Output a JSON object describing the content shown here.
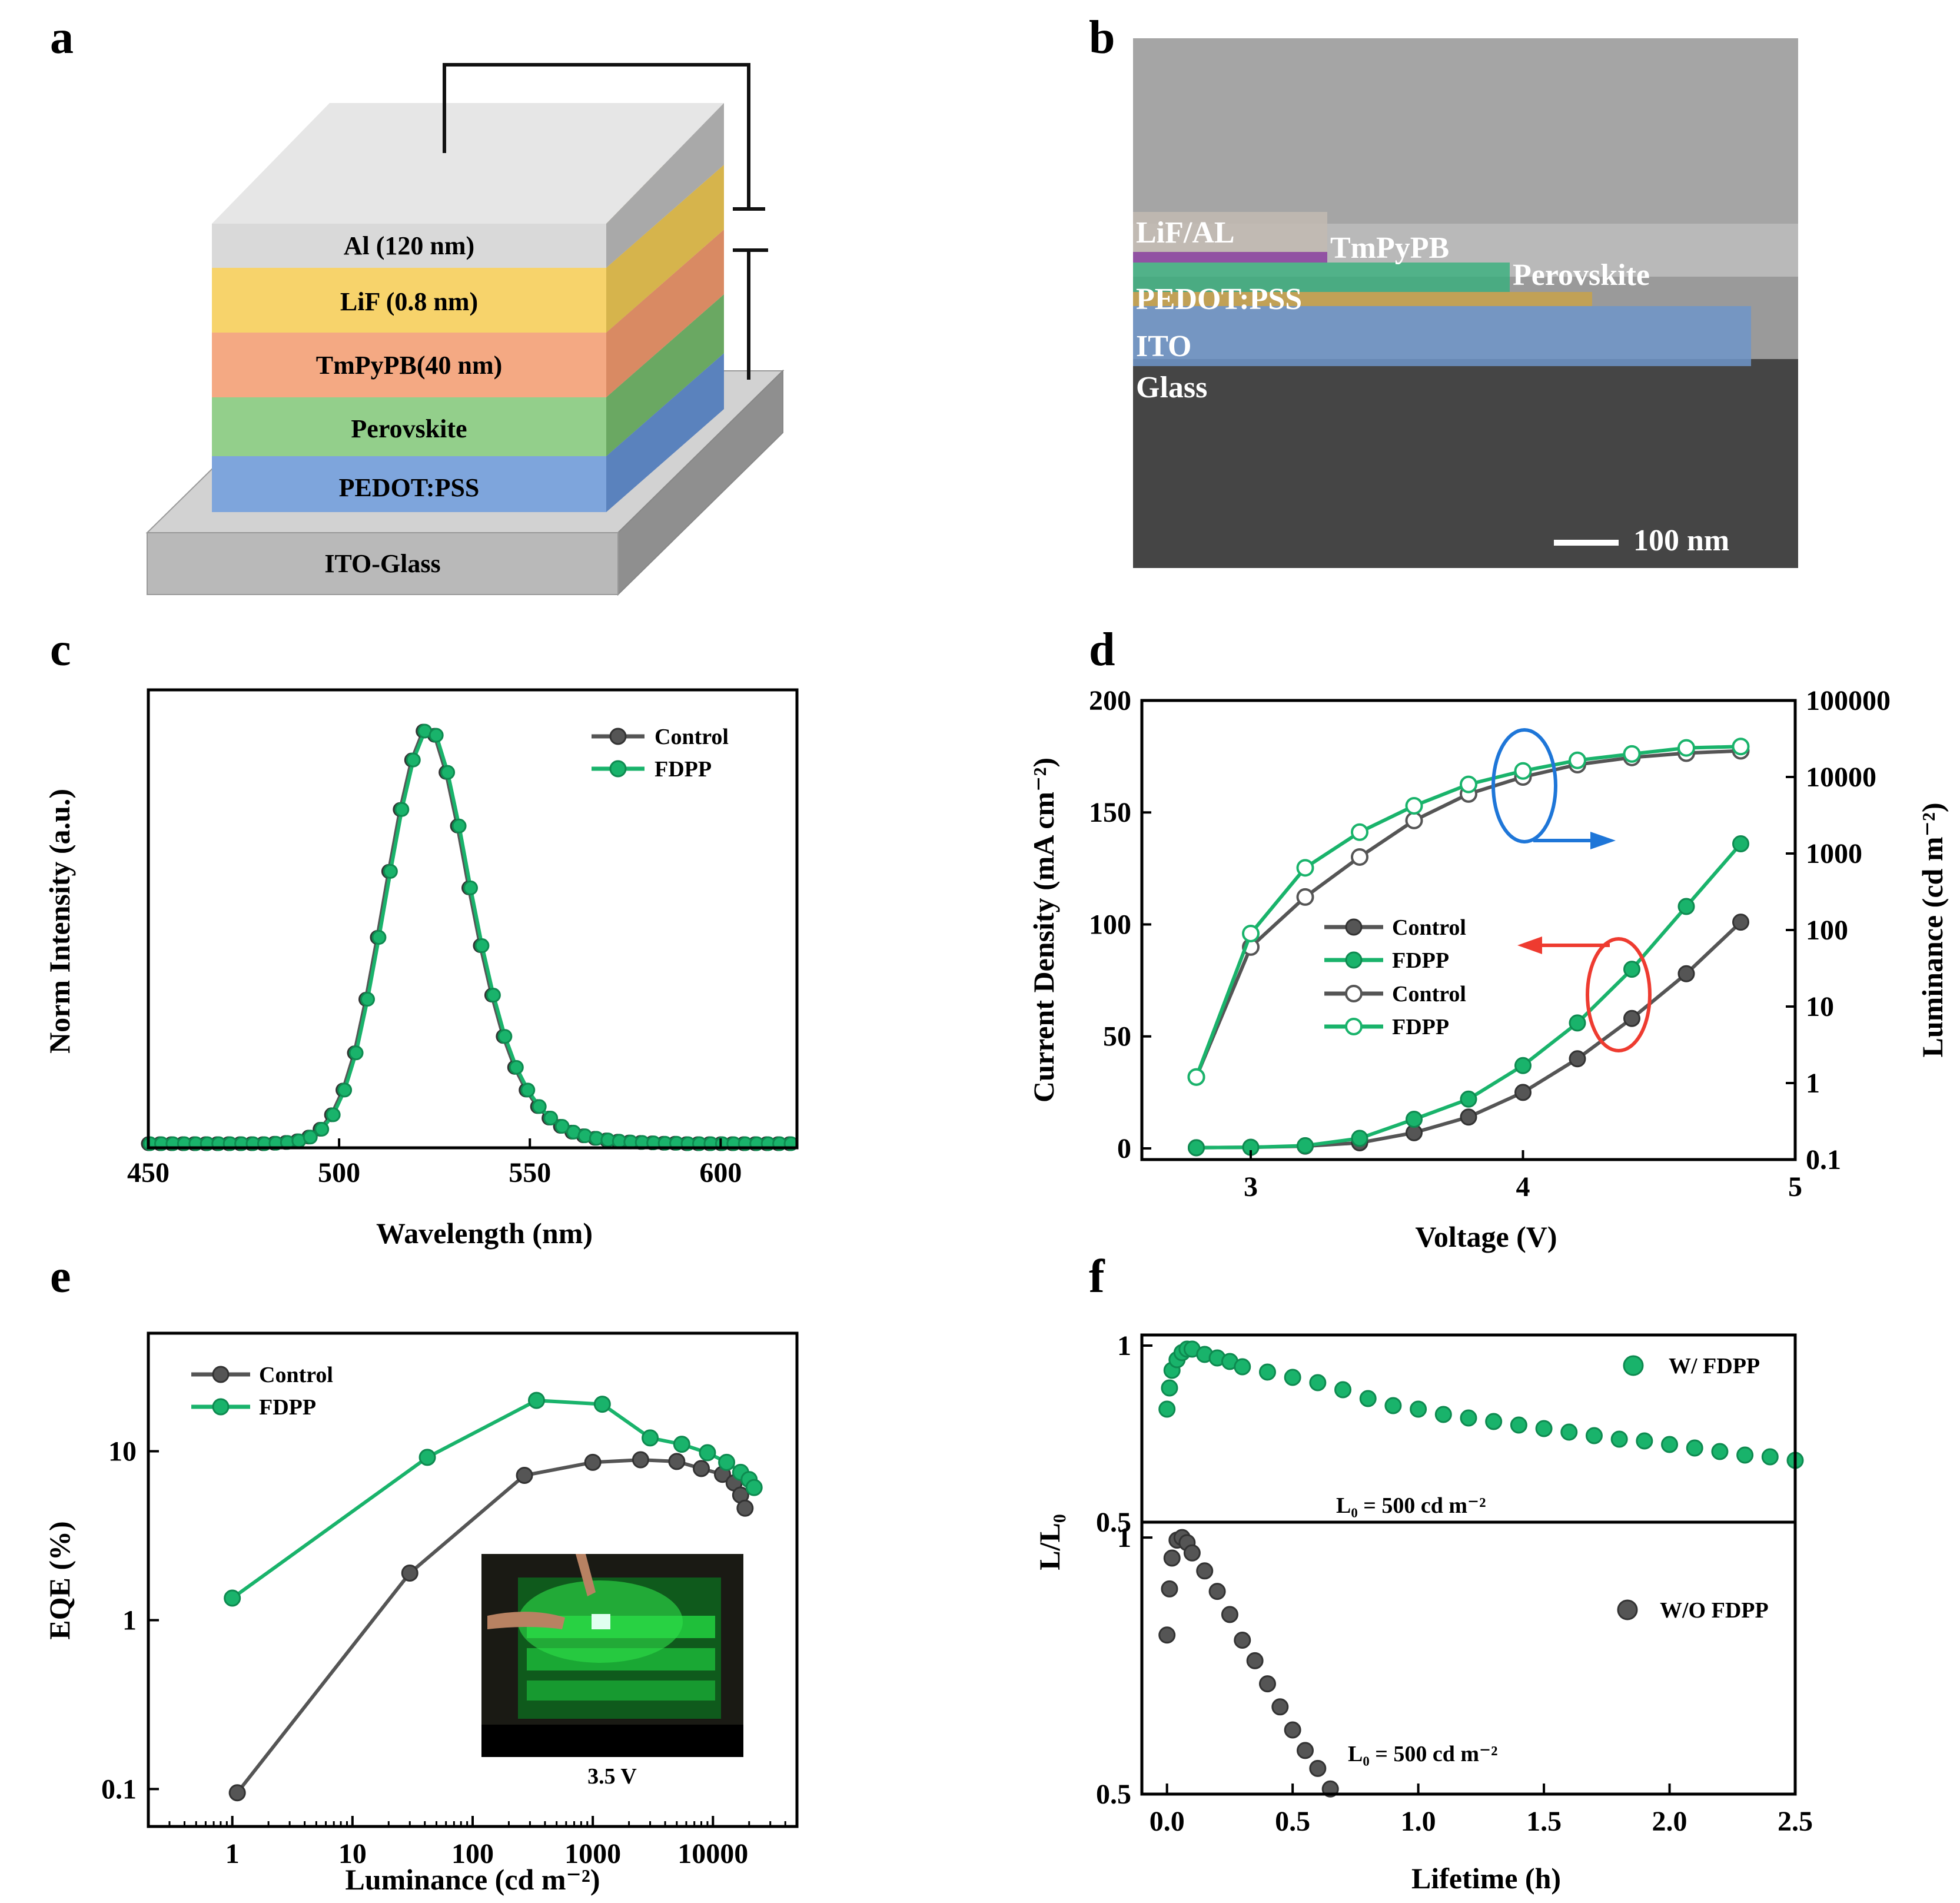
{
  "panels": {
    "a": {
      "label": "a",
      "layers": [
        "Al (120 nm)",
        "LiF (0.8 nm)",
        "TmPyPB(40 nm)",
        "Perovskite",
        "PEDOT:PSS",
        "ITO-Glass"
      ],
      "colors": {
        "al": "#d9d9d9",
        "lif": "#f7d36b",
        "tmpypb": "#f4a983",
        "perovskite": "#93cf8b",
        "pedot": "#7ea5dc",
        "ito": "#b9b9b9"
      }
    },
    "b": {
      "label": "b",
      "labels": {
        "lif_al": "LiF/AL",
        "tmpypb": "TmPyPB",
        "perovskite": "Perovskite",
        "pedot": "PEDOT:PSS",
        "ito": "ITO",
        "glass": "Glass"
      },
      "scale_bar": "100 nm"
    },
    "c": {
      "label": "c"
    },
    "d": {
      "label": "d"
    },
    "e": {
      "label": "e",
      "inset_caption": "3.5 V"
    },
    "f": {
      "label": "f",
      "top_note": "L₀ = 500 cd m⁻²",
      "bottom_note": "L₀ = 500 cd m⁻²"
    }
  },
  "colors": {
    "control": "#555555",
    "fdpp": "#19b36b",
    "blue": "#1e76d8",
    "red": "#ee3b30"
  },
  "chart_data": [
    {
      "panel": "c",
      "type": "line",
      "title": "",
      "xlabel": "Wavelength (nm)",
      "ylabel": "Norm Intensity (a.u.)",
      "xlim": [
        450,
        620
      ],
      "ylim": [
        -0.01,
        1.1
      ],
      "xticks": [
        "450",
        "500",
        "550",
        "600"
      ],
      "yticks_shown": false,
      "legend": [
        "Control",
        "FDPP"
      ],
      "legend_position": "top-right",
      "series": [
        {
          "name": "Control",
          "x": [
            450,
            453,
            456,
            459,
            462,
            465,
            468,
            471,
            474,
            477,
            480,
            483,
            486,
            489,
            492,
            495,
            498,
            501,
            504,
            507,
            510,
            513,
            516,
            519,
            522,
            525,
            528,
            531,
            534,
            537,
            540,
            543,
            546,
            549,
            552,
            555,
            558,
            561,
            564,
            567,
            570,
            573,
            576,
            579,
            582,
            585,
            588,
            591,
            594,
            597,
            600,
            603,
            606,
            609,
            612,
            615,
            618
          ],
          "y": [
            0,
            0,
            0,
            0,
            0,
            0,
            0,
            0,
            0,
            0,
            0,
            0.001,
            0.003,
            0.007,
            0.016,
            0.035,
            0.07,
            0.13,
            0.22,
            0.35,
            0.5,
            0.66,
            0.81,
            0.93,
            1.0,
            0.99,
            0.9,
            0.77,
            0.62,
            0.48,
            0.36,
            0.26,
            0.185,
            0.13,
            0.09,
            0.062,
            0.042,
            0.028,
            0.019,
            0.013,
            0.009,
            0.006,
            0.004,
            0.003,
            0.002,
            0.001,
            0.001,
            0,
            0,
            0,
            0,
            0,
            0,
            0,
            0,
            0,
            0
          ]
        },
        {
          "name": "FDPP",
          "x": [
            450,
            453,
            456,
            459,
            462,
            465,
            468,
            471,
            474,
            477,
            480,
            483,
            486,
            489,
            492,
            495,
            498,
            501,
            504,
            507,
            510,
            513,
            516,
            519,
            522,
            525,
            528,
            531,
            534,
            537,
            540,
            543,
            546,
            549,
            552,
            555,
            558,
            561,
            564,
            567,
            570,
            573,
            576,
            579,
            582,
            585,
            588,
            591,
            594,
            597,
            600,
            603,
            606,
            609,
            612,
            615,
            618
          ],
          "y": [
            0,
            0,
            0,
            0,
            0,
            0,
            0,
            0,
            0,
            0,
            0,
            0.001,
            0.003,
            0.007,
            0.016,
            0.035,
            0.07,
            0.13,
            0.22,
            0.35,
            0.5,
            0.66,
            0.81,
            0.93,
            1.0,
            0.99,
            0.9,
            0.77,
            0.62,
            0.48,
            0.36,
            0.26,
            0.185,
            0.13,
            0.09,
            0.062,
            0.042,
            0.028,
            0.019,
            0.013,
            0.009,
            0.006,
            0.004,
            0.003,
            0.002,
            0.001,
            0.001,
            0,
            0,
            0,
            0,
            0,
            0,
            0,
            0,
            0,
            0
          ]
        }
      ]
    },
    {
      "panel": "d",
      "type": "line",
      "title": "",
      "xlabel": "Voltage (V)",
      "ylabel": "Current Density (mA cm⁻²)",
      "ylabel_right": "Luminance (cd m⁻²)",
      "xlim": [
        2.6,
        5.0
      ],
      "ylim": [
        -5,
        200
      ],
      "ylim_right_log": [
        0.1,
        100000
      ],
      "xticks": [
        "3",
        "4",
        "5"
      ],
      "yticks": [
        "0",
        "50",
        "100",
        "150",
        "200"
      ],
      "yticks_right": [
        "0.1",
        "1",
        "10",
        "100",
        "1000",
        "10000",
        "100000"
      ],
      "legend": [
        "Control",
        "FDPP",
        "Control",
        "FDPP"
      ],
      "legend_position": "center",
      "series": [
        {
          "name": "Control",
          "axis": "left",
          "marker": "filled",
          "x": [
            2.8,
            3.0,
            3.2,
            3.4,
            3.6,
            3.8,
            4.0,
            4.2,
            4.4,
            4.6,
            4.8
          ],
          "y": [
            0.3,
            0.5,
            1.0,
            2.5,
            7,
            14,
            25,
            40,
            58,
            78,
            101
          ]
        },
        {
          "name": "FDPP",
          "axis": "left",
          "marker": "filled",
          "x": [
            2.8,
            3.0,
            3.2,
            3.4,
            3.6,
            3.8,
            4.0,
            4.2,
            4.4,
            4.6,
            4.8
          ],
          "y": [
            0.3,
            0.5,
            1.2,
            4.5,
            13,
            22,
            37,
            56,
            80,
            108,
            136
          ]
        },
        {
          "name": "Control",
          "axis": "right",
          "marker": "open",
          "x": [
            2.8,
            3.0,
            3.2,
            3.4,
            3.6,
            3.8,
            4.0,
            4.2,
            4.4,
            4.6,
            4.8
          ],
          "y": [
            1.2,
            60,
            270,
            900,
            2700,
            6000,
            10000,
            14500,
            18000,
            20500,
            22000
          ]
        },
        {
          "name": "FDPP",
          "axis": "right",
          "marker": "open",
          "x": [
            2.8,
            3.0,
            3.2,
            3.4,
            3.6,
            3.8,
            4.0,
            4.2,
            4.4,
            4.6,
            4.8
          ],
          "y": [
            1.2,
            90,
            650,
            1900,
            4200,
            8000,
            12000,
            16500,
            20000,
            24000,
            25000
          ]
        }
      ]
    },
    {
      "panel": "e",
      "type": "line",
      "title": "",
      "xlabel": "Luminance (cd m⁻²)",
      "ylabel": "EQE (%)",
      "xscale": "log",
      "yscale": "log",
      "xlim": [
        0.2,
        50000
      ],
      "ylim": [
        0.06,
        50
      ],
      "xticks": [
        "1",
        "10",
        "100",
        "1000",
        "10000"
      ],
      "yticks": [
        "0.1",
        "1",
        "10"
      ],
      "legend": [
        "Control",
        "FDPP"
      ],
      "legend_position": "top-left",
      "series": [
        {
          "name": "Control",
          "x": [
            1.1,
            30,
            270,
            1000,
            2500,
            5000,
            8000,
            12000,
            15000,
            17000,
            18500
          ],
          "y": [
            0.095,
            1.9,
            7.2,
            8.6,
            8.9,
            8.7,
            7.9,
            7.3,
            6.5,
            5.5,
            4.6
          ]
        },
        {
          "name": "FDPP",
          "x": [
            1.0,
            42,
            340,
            1200,
            3000,
            5500,
            9000,
            13000,
            17000,
            20000,
            22000
          ],
          "y": [
            1.35,
            9.2,
            20,
            19,
            12,
            11,
            9.8,
            8.6,
            7.5,
            6.8,
            6.1
          ]
        }
      ]
    },
    {
      "panel": "f",
      "type": "scatter",
      "title": "",
      "xlabel": "Lifetime (h)",
      "ylabel": "L/L₀",
      "xlim": [
        -0.1,
        2.5
      ],
      "ylim_top": [
        0.5,
        1.03
      ],
      "ylim_bottom": [
        0.5,
        1.03
      ],
      "xticks": [
        "0.0",
        "0.5",
        "1.0",
        "1.5",
        "2.0",
        "2.5"
      ],
      "yticks": [
        "0.5",
        "1"
      ],
      "legend": [
        "W/ FDPP",
        "W/O FDPP"
      ],
      "legend_position": "top-right",
      "series": [
        {
          "name": "W/ FDPP",
          "subplot": "top",
          "x": [
            0.0,
            0.01,
            0.02,
            0.04,
            0.06,
            0.08,
            0.1,
            0.15,
            0.2,
            0.25,
            0.3,
            0.4,
            0.5,
            0.6,
            0.7,
            0.8,
            0.9,
            1.0,
            1.1,
            1.2,
            1.3,
            1.4,
            1.5,
            1.6,
            1.7,
            1.8,
            1.9,
            2.0,
            2.1,
            2.2,
            2.3,
            2.4,
            2.5
          ],
          "y": [
            0.82,
            0.88,
            0.93,
            0.96,
            0.98,
            0.99,
            0.99,
            0.975,
            0.965,
            0.955,
            0.94,
            0.925,
            0.91,
            0.895,
            0.875,
            0.85,
            0.83,
            0.82,
            0.805,
            0.795,
            0.785,
            0.775,
            0.765,
            0.755,
            0.745,
            0.735,
            0.73,
            0.72,
            0.71,
            0.7,
            0.69,
            0.685,
            0.675
          ]
        },
        {
          "name": "W/O FDPP",
          "subplot": "bottom",
          "x": [
            0.0,
            0.01,
            0.02,
            0.04,
            0.06,
            0.08,
            0.1,
            0.15,
            0.2,
            0.25,
            0.3,
            0.35,
            0.4,
            0.45,
            0.5,
            0.55,
            0.6,
            0.65
          ],
          "y": [
            0.81,
            0.9,
            0.96,
            0.995,
            1.0,
            0.99,
            0.97,
            0.935,
            0.895,
            0.85,
            0.8,
            0.76,
            0.715,
            0.67,
            0.625,
            0.585,
            0.55,
            0.51
          ]
        }
      ]
    }
  ]
}
